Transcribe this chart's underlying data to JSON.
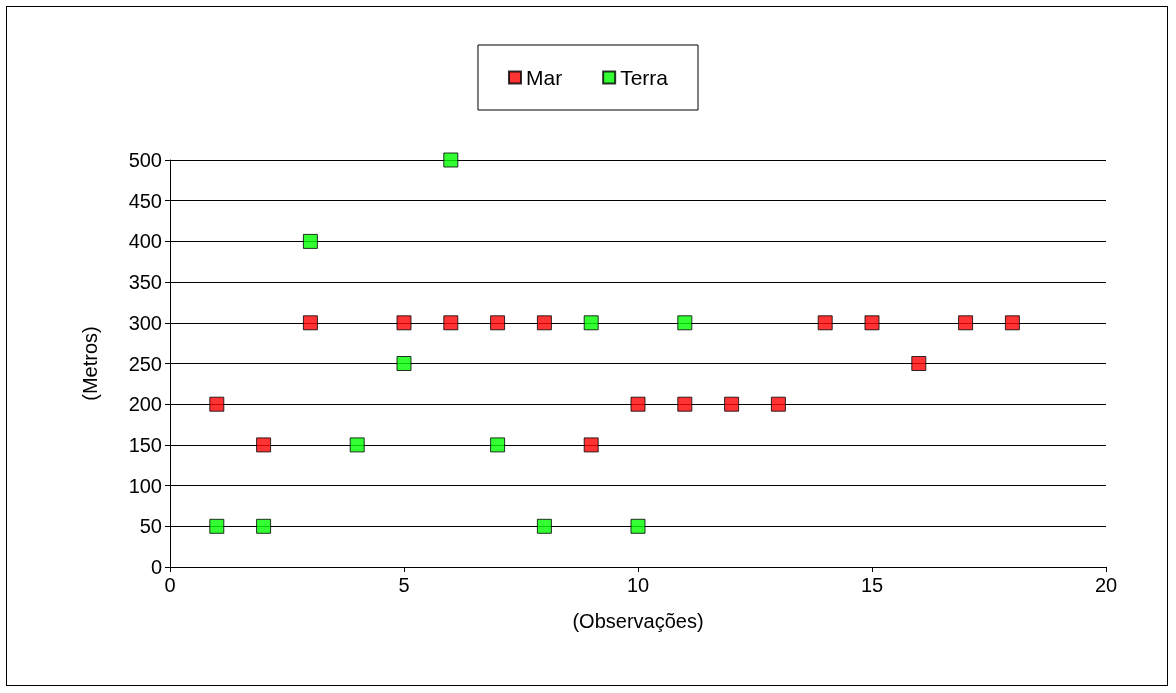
{
  "chart_data": {
    "type": "scatter",
    "xlabel": "(Observações)",
    "ylabel": "(Metros)",
    "series": [
      {
        "name": "Mar",
        "color": "#ff0000",
        "x": [
          1,
          2,
          3,
          5,
          6,
          7,
          8,
          9,
          10,
          11,
          12,
          13,
          14,
          15,
          16,
          17,
          18
        ],
        "values": [
          200,
          150,
          300,
          300,
          300,
          300,
          300,
          150,
          200,
          200,
          200,
          200,
          300,
          300,
          250,
          300,
          300
        ]
      },
      {
        "name": "Terra",
        "color": "#00ff00",
        "x": [
          1,
          2,
          3,
          4,
          5,
          6,
          7,
          8,
          9,
          10,
          11
        ],
        "values": [
          50,
          50,
          400,
          150,
          250,
          500,
          150,
          50,
          300,
          50,
          300
        ]
      }
    ],
    "xlim": [
      0,
      20
    ],
    "xticks": [
      0,
      5,
      10,
      15,
      20
    ],
    "ylim": [
      0,
      500
    ],
    "yticks": [
      0,
      50,
      100,
      150,
      200,
      250,
      300,
      350,
      400,
      450,
      500
    ],
    "grid": "y",
    "legend": "top",
    "marker": "square"
  }
}
